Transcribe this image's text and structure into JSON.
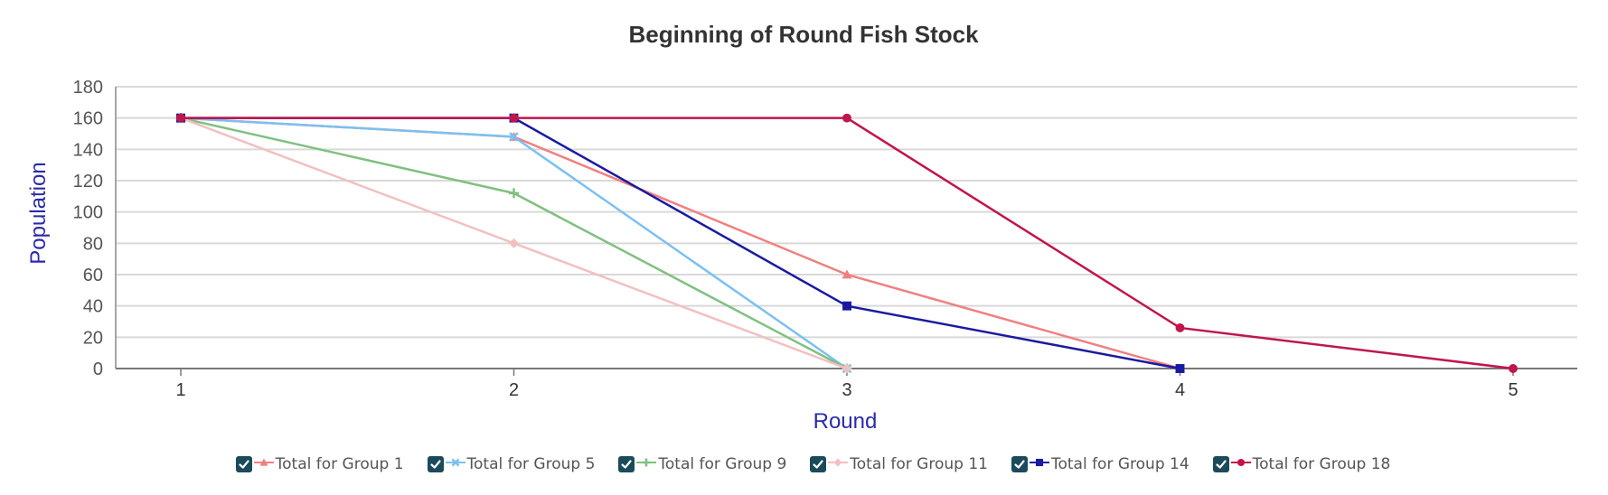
{
  "chart_data": {
    "type": "line",
    "title": "Beginning of Round Fish Stock",
    "xlabel": "Round",
    "ylabel": "Population",
    "x": [
      1,
      2,
      3,
      4,
      5
    ],
    "x_tick_labels": [
      "1",
      "2",
      "3",
      "4",
      "5"
    ],
    "y_tick_labels": [
      "0",
      "20",
      "40",
      "60",
      "80",
      "100",
      "120",
      "140",
      "160",
      "180"
    ],
    "ylim": [
      0,
      180
    ],
    "y_ticks": [
      0,
      20,
      40,
      60,
      80,
      100,
      120,
      140,
      160,
      180
    ],
    "grid": true,
    "legend_position": "bottom",
    "axis_title_color": "#2a2aaa",
    "series": [
      {
        "name": "Total for Group 1",
        "color": "#f08080",
        "marker": "triangle",
        "x": [
          1,
          2,
          3,
          4
        ],
        "values": [
          160,
          148,
          60,
          0
        ]
      },
      {
        "name": "Total for Group 5",
        "color": "#7cc0f0",
        "marker": "x",
        "x": [
          1,
          2,
          3
        ],
        "values": [
          160,
          148,
          0
        ]
      },
      {
        "name": "Total for Group 9",
        "color": "#80c080",
        "marker": "plus",
        "x": [
          1,
          2,
          3
        ],
        "values": [
          160,
          112,
          0
        ]
      },
      {
        "name": "Total for Group 11",
        "color": "#f2c0c0",
        "marker": "diamond",
        "x": [
          1,
          2,
          3
        ],
        "values": [
          160,
          80,
          0
        ]
      },
      {
        "name": "Total for Group 14",
        "color": "#1a1aa0",
        "marker": "square",
        "x": [
          1,
          2,
          3,
          4
        ],
        "values": [
          160,
          160,
          40,
          0
        ]
      },
      {
        "name": "Total for Group 18",
        "color": "#c0164a",
        "marker": "circle",
        "x": [
          1,
          2,
          3,
          4,
          5
        ],
        "values": [
          160,
          160,
          160,
          26,
          0
        ]
      }
    ]
  }
}
